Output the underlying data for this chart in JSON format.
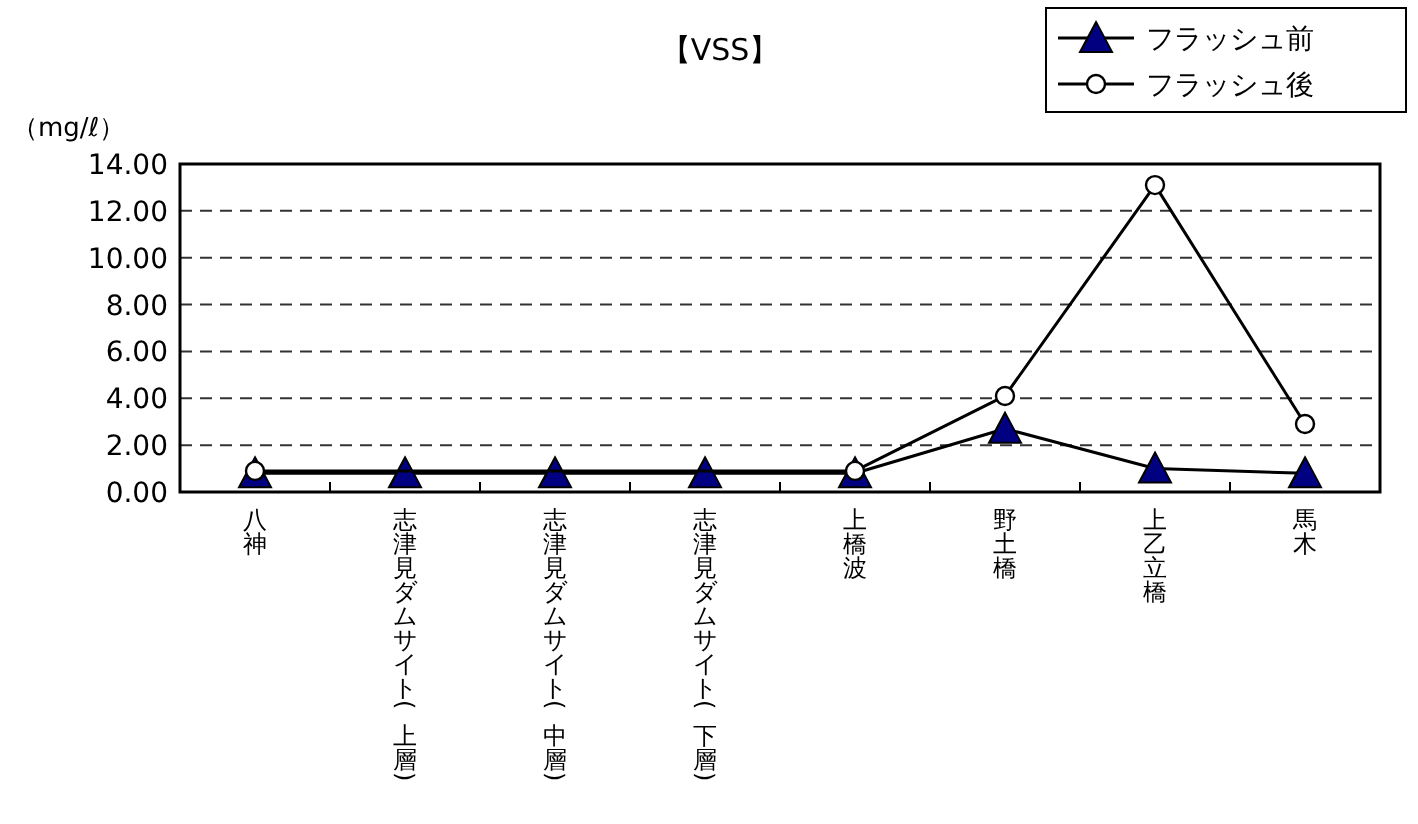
{
  "chart_data": {
    "type": "line",
    "title": "【VSS】",
    "ylabel": "（mg/ℓ）",
    "categories": [
      "八神",
      "志津見ダムサイト(上層)",
      "志津見ダムサイト(中層)",
      "志津見ダムサイト(下層)",
      "上橋波",
      "野土橋",
      "上乙立橋",
      "馬木"
    ],
    "series": [
      {
        "name": "フラッシュ前",
        "color": "#000080",
        "marker": "triangle",
        "values": [
          0.8,
          0.8,
          0.8,
          0.8,
          0.8,
          2.7,
          1.0,
          0.8
        ]
      },
      {
        "name": "フラッシュ後",
        "color": "#ffffff",
        "marker": "circle",
        "values": [
          0.9,
          null,
          null,
          null,
          0.9,
          4.1,
          13.1,
          2.9
        ]
      }
    ],
    "ylim": [
      0,
      14
    ],
    "yticks": [
      {
        "value": 0,
        "label": "0.00"
      },
      {
        "value": 2,
        "label": "2.00"
      },
      {
        "value": 4,
        "label": "4.00"
      },
      {
        "value": 6,
        "label": "6.00"
      },
      {
        "value": 8,
        "label": "8.00"
      },
      {
        "value": 10,
        "label": "10.00"
      },
      {
        "value": 12,
        "label": "12.00"
      },
      {
        "value": 14,
        "label": "14.00"
      }
    ],
    "grid": "y",
    "legend": "top right"
  }
}
